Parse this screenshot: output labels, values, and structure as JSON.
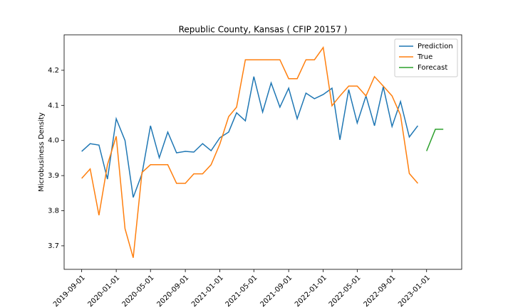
{
  "chart_data": {
    "type": "line",
    "title": "Republic County, Kansas ( CFIP 20157 )",
    "y_label": "Microbusiness Density",
    "xlim": [
      "2019-07-01",
      "2023-05-05"
    ],
    "ylim": [
      3.633,
      4.301
    ],
    "xticks": [
      "2019-09-01",
      "2020-01-01",
      "2020-05-01",
      "2020-09-01",
      "2021-01-01",
      "2021-05-01",
      "2021-09-01",
      "2022-01-01",
      "2022-05-01",
      "2022-09-01",
      "2023-01-01"
    ],
    "yticks": [
      3.7,
      3.8,
      3.9,
      {
        "value": 4,
        "label": "4.0"
      },
      4.1,
      4.2
    ],
    "legend": "upper right",
    "series": [
      {
        "name": "Prediction",
        "color": "#1f77b4",
        "x": [
          "2019-09-01",
          "2019-10-01",
          "2019-11-01",
          "2019-12-01",
          "2020-01-01",
          "2020-02-01",
          "2020-03-01",
          "2020-04-01",
          "2020-05-01",
          "2020-06-01",
          "2020-07-01",
          "2020-08-01",
          "2020-09-01",
          "2020-10-01",
          "2020-11-01",
          "2020-12-01",
          "2021-01-01",
          "2021-02-01",
          "2021-03-01",
          "2021-04-01",
          "2021-05-01",
          "2021-06-01",
          "2021-07-01",
          "2021-08-01",
          "2021-09-01",
          "2021-10-01",
          "2021-11-01",
          "2021-12-01",
          "2022-01-01",
          "2022-02-01",
          "2022-03-01",
          "2022-04-01",
          "2022-05-01",
          "2022-06-01",
          "2022-07-01",
          "2022-08-01",
          "2022-09-01",
          "2022-10-01",
          "2022-11-01",
          "2022-12-01"
        ],
        "values": [
          3.969,
          3.991,
          3.987,
          3.89,
          4.062,
          4.0,
          3.838,
          3.905,
          4.042,
          3.951,
          4.024,
          3.965,
          3.969,
          3.967,
          3.991,
          3.971,
          4.008,
          4.024,
          4.079,
          4.056,
          4.182,
          4.081,
          4.164,
          4.095,
          4.149,
          4.062,
          4.135,
          4.119,
          4.131,
          4.149,
          4.002,
          4.145,
          4.05,
          4.127,
          4.042,
          4.153,
          4.04,
          4.111,
          4.01,
          4.042
        ]
      },
      {
        "name": "True",
        "color": "#ff7f0e",
        "x": [
          "2019-09-01",
          "2019-10-01",
          "2019-11-01",
          "2019-12-01",
          "2020-01-01",
          "2020-02-01",
          "2020-03-01",
          "2020-04-01",
          "2020-05-01",
          "2020-06-01",
          "2020-07-01",
          "2020-08-01",
          "2020-09-01",
          "2020-10-01",
          "2020-11-01",
          "2020-12-01",
          "2021-01-01",
          "2021-02-01",
          "2021-03-01",
          "2021-04-01",
          "2021-05-01",
          "2021-06-01",
          "2021-07-01",
          "2021-08-01",
          "2021-09-01",
          "2021-10-01",
          "2021-11-01",
          "2021-12-01",
          "2022-01-01",
          "2022-02-01",
          "2022-03-01",
          "2022-04-01",
          "2022-05-01",
          "2022-06-01",
          "2022-07-01",
          "2022-08-01",
          "2022-09-01",
          "2022-10-01",
          "2022-11-01",
          "2022-12-01"
        ],
        "values": [
          3.892,
          3.919,
          3.787,
          3.931,
          4.012,
          3.749,
          3.666,
          3.909,
          3.931,
          3.931,
          3.931,
          3.878,
          3.878,
          3.905,
          3.905,
          3.931,
          3.99,
          4.068,
          4.095,
          4.23,
          4.23,
          4.23,
          4.23,
          4.23,
          4.176,
          4.176,
          4.23,
          4.23,
          4.265,
          4.099,
          4.127,
          4.155,
          4.155,
          4.127,
          4.182,
          4.155,
          4.127,
          4.072,
          3.906,
          3.878
        ]
      },
      {
        "name": "Forecast",
        "color": "#2ca02c",
        "x": [
          "2023-01-01",
          "2023-02-01",
          "2023-03-01"
        ],
        "values": [
          3.97,
          4.032,
          4.032
        ]
      }
    ]
  }
}
